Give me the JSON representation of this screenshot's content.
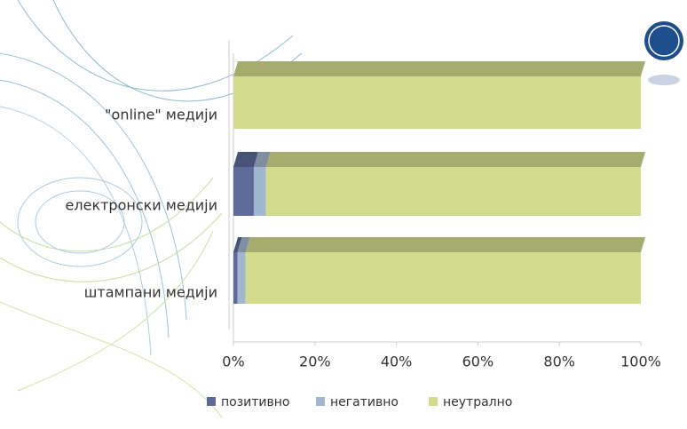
{
  "chart_data": {
    "type": "bar",
    "orientation": "horizontal",
    "stacked": true,
    "categories": [
      "\"online\" медији",
      "електронски медији",
      "штампани медији"
    ],
    "series": [
      {
        "name": "позитивно",
        "color": "#5d6b9a",
        "values": [
          0,
          5,
          1
        ]
      },
      {
        "name": "негативно",
        "color": "#a3b6cf",
        "values": [
          0,
          3,
          2
        ]
      },
      {
        "name": "неутрално",
        "color": "#d3dc8c",
        "values": [
          100,
          92,
          97
        ]
      }
    ],
    "xlim": [
      0,
      100
    ],
    "xticks": [
      {
        "value": 0,
        "label": "0%"
      },
      {
        "value": 20,
        "label": "20%"
      },
      {
        "value": 40,
        "label": "40%"
      },
      {
        "value": 60,
        "label": "60%"
      },
      {
        "value": 80,
        "label": "80%"
      },
      {
        "value": 100,
        "label": "100%"
      }
    ],
    "legend": "bottom"
  }
}
